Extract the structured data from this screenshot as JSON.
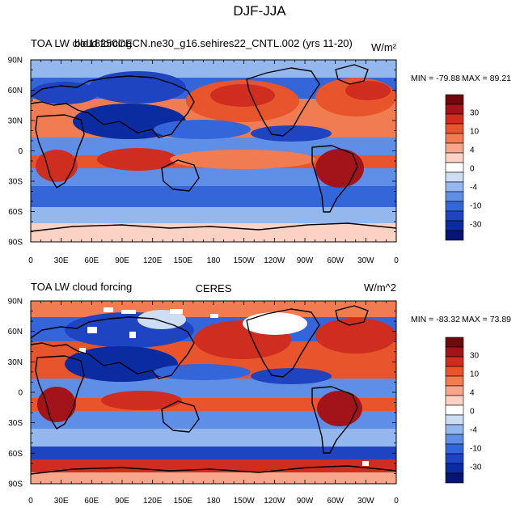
{
  "page": {
    "title": "DJF-JJA"
  },
  "chart_data": [
    {
      "type": "heatmap",
      "subtype": "global-map-contour",
      "left_title": "TOA LW cloud forcing",
      "center_title": "bld18250CECN.ne30_g16.sehires22_CNTL.002 (yrs 11-20)",
      "units": "W/m²",
      "min_label": "MIN = -79.88",
      "max_label": "MAX =  89.21",
      "min": -79.88,
      "max": 89.21,
      "xticks": [
        "0",
        "30E",
        "60E",
        "90E",
        "120E",
        "150E",
        "180",
        "150W",
        "120W",
        "90W",
        "60W",
        "30W",
        "0"
      ],
      "yticks": [
        "90N",
        "60N",
        "30N",
        "0",
        "30S",
        "60S",
        "90S"
      ],
      "colorbar_labels": [
        "30",
        "10",
        "4",
        "0",
        "-4",
        "-10",
        "-30"
      ],
      "colorbar_colors": [
        "#6e0a0c",
        "#a3141a",
        "#cf2d20",
        "#e8542c",
        "#f27c52",
        "#f7a68c",
        "#fbd2c4",
        "#ffffff",
        "#ccddf4",
        "#94b7ed",
        "#5f8ee6",
        "#3466da",
        "#1f44c2",
        "#0b2ba0",
        "#061574"
      ]
    },
    {
      "type": "heatmap",
      "subtype": "global-map-contour",
      "left_title": "TOA LW cloud forcing",
      "center_title": "CERES",
      "units": "W/m^2",
      "min_label": "MIN = -83.32",
      "max_label": "MAX =  73.89",
      "min": -83.32,
      "max": 73.89,
      "xticks": [
        "0",
        "30E",
        "60E",
        "90E",
        "120E",
        "150E",
        "180",
        "150W",
        "120W",
        "90W",
        "60W",
        "30W",
        "0"
      ],
      "yticks": [
        "90N",
        "60N",
        "30N",
        "0",
        "30S",
        "60S",
        "90S"
      ],
      "colorbar_labels": [
        "30",
        "10",
        "4",
        "0",
        "-4",
        "-10",
        "-30"
      ],
      "colorbar_colors": [
        "#6e0a0c",
        "#a3141a",
        "#cf2d20",
        "#e8542c",
        "#f27c52",
        "#f7a68c",
        "#fbd2c4",
        "#ffffff",
        "#ccddf4",
        "#94b7ed",
        "#5f8ee6",
        "#3466da",
        "#1f44c2",
        "#0b2ba0",
        "#061574"
      ]
    }
  ]
}
